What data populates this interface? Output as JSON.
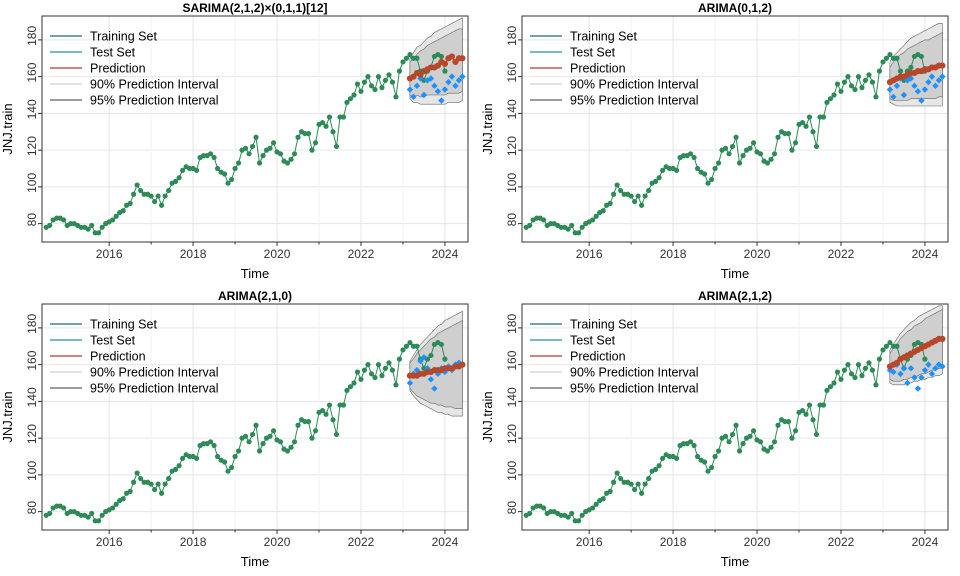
{
  "chart_data": [
    {
      "type": "line",
      "title": "SARIMA(2,1,2)×(0,1,1)[12]",
      "xlabel": "Time",
      "ylabel": "JNJ.train",
      "xlim": [
        2014.4,
        2024.55
      ],
      "ylim": [
        70,
        193
      ],
      "xticks": [
        2016,
        2018,
        2020,
        2022,
        2024
      ],
      "yticks": [
        80,
        100,
        120,
        140,
        160,
        180
      ],
      "grid": true,
      "legend_position": "top-left",
      "legend": [
        "Training Set",
        "Test Set",
        "Prediction",
        "90% Prediction Interval",
        "95% Prediction Interval"
      ],
      "train": {
        "start": 2014.5,
        "step": 0.0833333,
        "values": [
          78,
          79,
          82,
          83,
          83,
          82,
          79,
          80,
          80,
          79,
          78,
          78,
          77,
          79,
          75,
          75,
          78,
          80,
          81,
          82,
          84,
          86,
          87,
          90,
          91,
          96,
          101,
          98,
          96,
          96,
          95,
          92,
          95,
          90,
          95,
          98,
          102,
          103,
          105,
          109,
          111,
          110,
          110,
          109,
          116,
          117,
          117,
          118,
          116,
          110,
          108,
          107,
          102,
          104,
          110,
          113,
          120,
          121,
          118,
          122,
          127,
          113,
          117,
          120,
          121,
          124,
          119,
          118,
          114,
          113,
          115,
          118,
          127,
          130,
          129,
          129,
          120,
          124,
          134,
          135,
          133,
          138,
          130,
          122,
          138,
          138,
          146,
          148,
          150,
          156,
          152,
          157,
          160,
          155,
          153,
          160,
          154,
          158,
          161,
          157,
          149,
          163,
          168,
          170,
          172,
          170,
          170,
          163,
          158,
          163,
          165,
          171,
          172,
          171,
          163
        ],
        "color": "#2e8b57"
      },
      "test": {
        "start": 2023.1667,
        "step": 0.0833333,
        "values": [
          153,
          149,
          155,
          159,
          150,
          158,
          159,
          155,
          152,
          147,
          153,
          157,
          160,
          155,
          158,
          160
        ],
        "color": "#1e90ff"
      },
      "prediction": {
        "start": 2023.1667,
        "step": 0.0833333,
        "values": [
          159,
          160,
          162,
          161,
          163,
          164,
          165,
          165,
          166,
          168,
          167,
          170,
          171,
          168,
          170,
          170
        ],
        "color": "#b7472a"
      },
      "pi90": {
        "start": 2023.1667,
        "step": 0.0833333,
        "lower": [
          150,
          149,
          150,
          149,
          149,
          150,
          150,
          150,
          150,
          150,
          150,
          151,
          151,
          151,
          151,
          152
        ],
        "upper": [
          168,
          170,
          172,
          174,
          175,
          177,
          178,
          179,
          180,
          181,
          182,
          183,
          184,
          185,
          186,
          186
        ]
      },
      "pi95": {
        "start": 2023.1667,
        "step": 0.0833333,
        "lower": [
          148,
          146,
          146,
          145,
          145,
          145,
          145,
          145,
          145,
          145,
          145,
          146,
          146,
          146,
          146,
          147
        ],
        "upper": [
          170,
          173,
          176,
          177,
          179,
          181,
          182,
          184,
          185,
          186,
          187,
          188,
          189,
          190,
          191,
          192
        ]
      }
    },
    {
      "type": "line",
      "title": "ARIMA(0,1,2)",
      "xlabel": "Time",
      "ylabel": "JNJ.train",
      "xlim": [
        2014.4,
        2024.55
      ],
      "ylim": [
        70,
        193
      ],
      "xticks": [
        2016,
        2018,
        2020,
        2022,
        2024
      ],
      "yticks": [
        80,
        100,
        120,
        140,
        160,
        180
      ],
      "grid": true,
      "legend_position": "top-left",
      "legend": [
        "Training Set",
        "Test Set",
        "Prediction",
        "90% Prediction Interval",
        "95% Prediction Interval"
      ],
      "train": {
        "start": 2014.5,
        "step": 0.0833333,
        "values": [
          78,
          79,
          82,
          83,
          83,
          82,
          79,
          80,
          80,
          79,
          78,
          78,
          77,
          79,
          75,
          75,
          78,
          80,
          81,
          82,
          84,
          86,
          87,
          90,
          91,
          96,
          101,
          98,
          96,
          96,
          95,
          92,
          95,
          90,
          95,
          98,
          102,
          103,
          105,
          109,
          111,
          110,
          110,
          109,
          116,
          117,
          117,
          118,
          116,
          110,
          108,
          107,
          102,
          104,
          110,
          113,
          120,
          121,
          118,
          122,
          127,
          113,
          117,
          120,
          121,
          124,
          119,
          118,
          114,
          113,
          115,
          118,
          127,
          130,
          129,
          129,
          120,
          124,
          134,
          135,
          133,
          138,
          130,
          122,
          138,
          138,
          146,
          148,
          150,
          156,
          152,
          157,
          160,
          155,
          153,
          160,
          154,
          158,
          161,
          157,
          149,
          163,
          168,
          170,
          172,
          170,
          170,
          163,
          158,
          163,
          165,
          171,
          172,
          171,
          163
        ],
        "color": "#2e8b57"
      },
      "test": {
        "start": 2023.1667,
        "step": 0.0833333,
        "values": [
          153,
          149,
          155,
          159,
          150,
          158,
          159,
          155,
          152,
          147,
          153,
          157,
          160,
          155,
          158,
          160
        ],
        "color": "#1e90ff"
      },
      "prediction": {
        "start": 2023.1667,
        "step": 0.0833333,
        "values": [
          157,
          158,
          159,
          160,
          160,
          161,
          162,
          162,
          163,
          163,
          164,
          164,
          165,
          165,
          166,
          166
        ],
        "color": "#b7472a"
      },
      "pi90": {
        "start": 2023.1667,
        "step": 0.0833333,
        "lower": [
          148,
          147,
          147,
          147,
          147,
          147,
          148,
          148,
          148,
          148,
          148,
          148,
          148,
          148,
          149,
          149
        ],
        "upper": [
          165,
          168,
          170,
          172,
          173,
          175,
          176,
          177,
          178,
          179,
          180,
          180,
          181,
          182,
          183,
          184
        ]
      },
      "pi95": {
        "start": 2023.1667,
        "step": 0.0833333,
        "lower": [
          146,
          145,
          144,
          144,
          144,
          144,
          144,
          144,
          144,
          144,
          144,
          144,
          144,
          144,
          144,
          144
        ],
        "upper": [
          168,
          171,
          173,
          175,
          177,
          179,
          181,
          182,
          183,
          184,
          185,
          186,
          187,
          188,
          189,
          189
        ]
      }
    },
    {
      "type": "line",
      "title": "ARIMA(2,1,0)",
      "xlabel": "Time",
      "ylabel": "JNJ.train",
      "xlim": [
        2014.4,
        2024.55
      ],
      "ylim": [
        70,
        193
      ],
      "xticks": [
        2016,
        2018,
        2020,
        2022,
        2024
      ],
      "yticks": [
        80,
        100,
        120,
        140,
        160,
        180
      ],
      "grid": true,
      "legend_position": "top-left",
      "legend": [
        "Training Set",
        "Test Set",
        "Prediction",
        "90% Prediction Interval",
        "95% Prediction Interval"
      ],
      "train": {
        "start": 2014.5,
        "step": 0.0833333,
        "values": [
          78,
          79,
          82,
          83,
          83,
          82,
          79,
          80,
          80,
          79,
          78,
          78,
          77,
          79,
          75,
          75,
          78,
          80,
          81,
          82,
          84,
          86,
          87,
          90,
          91,
          96,
          101,
          98,
          96,
          96,
          95,
          92,
          95,
          90,
          95,
          98,
          102,
          103,
          105,
          109,
          111,
          110,
          110,
          109,
          116,
          117,
          117,
          118,
          116,
          110,
          108,
          107,
          102,
          104,
          110,
          113,
          120,
          121,
          118,
          122,
          127,
          113,
          117,
          120,
          121,
          124,
          119,
          118,
          114,
          113,
          115,
          118,
          127,
          130,
          129,
          129,
          120,
          124,
          134,
          135,
          133,
          138,
          130,
          122,
          138,
          138,
          146,
          148,
          150,
          156,
          152,
          157,
          160,
          155,
          153,
          160,
          154,
          158,
          161,
          157,
          149,
          163,
          168,
          170,
          172,
          170,
          170,
          163,
          158,
          163,
          165,
          171,
          172,
          171,
          163
        ],
        "color": "#2e8b57"
      },
      "test": {
        "start": 2023.1667,
        "step": 0.0833333,
        "values": [
          150,
          155,
          157,
          162,
          164,
          158,
          152,
          147,
          155,
          158,
          156,
          159,
          157,
          160,
          161,
          160
        ],
        "color": "#1e90ff"
      },
      "prediction": {
        "start": 2023.1667,
        "step": 0.0833333,
        "values": [
          154,
          154,
          154,
          155,
          155,
          156,
          156,
          157,
          157,
          157,
          158,
          158,
          158,
          159,
          159,
          160
        ],
        "color": "#b7472a"
      },
      "pi90": {
        "start": 2023.1667,
        "step": 0.0833333,
        "lower": [
          147,
          145,
          143,
          142,
          141,
          140,
          139,
          139,
          138,
          138,
          137,
          137,
          137,
          136,
          136,
          136
        ],
        "upper": [
          161,
          163,
          166,
          168,
          170,
          172,
          174,
          175,
          177,
          178,
          179,
          180,
          181,
          182,
          183,
          184
        ]
      },
      "pi95": {
        "start": 2023.1667,
        "step": 0.0833333,
        "lower": [
          146,
          143,
          141,
          139,
          138,
          137,
          136,
          135,
          134,
          134,
          133,
          133,
          132,
          132,
          132,
          132
        ],
        "upper": [
          162,
          165,
          168,
          171,
          173,
          175,
          177,
          179,
          181,
          182,
          184,
          185,
          186,
          187,
          188,
          189
        ]
      }
    },
    {
      "type": "line",
      "title": "ARIMA(2,1,2)",
      "xlabel": "Time",
      "ylabel": "JNJ.train",
      "xlim": [
        2014.4,
        2024.55
      ],
      "ylim": [
        70,
        193
      ],
      "xticks": [
        2016,
        2018,
        2020,
        2022,
        2024
      ],
      "yticks": [
        80,
        100,
        120,
        140,
        160,
        180
      ],
      "grid": true,
      "legend_position": "top-left",
      "legend": [
        "Training Set",
        "Test Set",
        "Prediction",
        "90% Prediction Interval",
        "95% Prediction Interval"
      ],
      "train": {
        "start": 2014.5,
        "step": 0.0833333,
        "values": [
          78,
          79,
          82,
          83,
          83,
          82,
          79,
          80,
          80,
          79,
          78,
          78,
          77,
          79,
          75,
          75,
          78,
          80,
          81,
          82,
          84,
          86,
          87,
          90,
          91,
          96,
          101,
          98,
          96,
          96,
          95,
          92,
          95,
          90,
          95,
          98,
          102,
          103,
          105,
          109,
          111,
          110,
          110,
          109,
          116,
          117,
          117,
          118,
          116,
          110,
          108,
          107,
          102,
          104,
          110,
          113,
          120,
          121,
          118,
          122,
          127,
          113,
          117,
          120,
          121,
          124,
          119,
          118,
          114,
          113,
          115,
          118,
          127,
          130,
          129,
          129,
          120,
          124,
          134,
          135,
          133,
          138,
          130,
          122,
          138,
          138,
          146,
          148,
          150,
          156,
          152,
          157,
          160,
          155,
          153,
          160,
          154,
          158,
          161,
          157,
          149,
          163,
          168,
          170,
          172,
          170,
          170,
          163,
          158,
          163,
          165,
          171,
          172,
          171,
          163
        ],
        "color": "#2e8b57"
      },
      "test": {
        "start": 2023.1667,
        "step": 0.0833333,
        "values": [
          157,
          156,
          160,
          155,
          158,
          150,
          158,
          153,
          147,
          153,
          157,
          160,
          155,
          158,
          160,
          159
        ],
        "color": "#1e90ff"
      },
      "prediction": {
        "start": 2023.1667,
        "step": 0.0833333,
        "values": [
          159,
          160,
          161,
          163,
          164,
          165,
          166,
          167,
          168,
          169,
          170,
          171,
          172,
          173,
          174,
          174
        ],
        "color": "#b7472a"
      },
      "pi90": {
        "start": 2023.1667,
        "step": 0.0833333,
        "lower": [
          152,
          151,
          151,
          151,
          152,
          152,
          153,
          153,
          154,
          155,
          155,
          156,
          157,
          157,
          158,
          158
        ],
        "upper": [
          166,
          169,
          171,
          174,
          176,
          178,
          179,
          181,
          182,
          183,
          185,
          186,
          187,
          188,
          189,
          190
        ]
      },
      "pi95": {
        "start": 2023.1667,
        "step": 0.0833333,
        "lower": [
          150,
          149,
          149,
          149,
          149,
          150,
          150,
          151,
          151,
          152,
          152,
          153,
          153,
          154,
          154,
          155
        ],
        "upper": [
          168,
          171,
          174,
          177,
          179,
          181,
          183,
          184,
          186,
          187,
          188,
          189,
          190,
          191,
          192,
          192
        ]
      }
    }
  ]
}
